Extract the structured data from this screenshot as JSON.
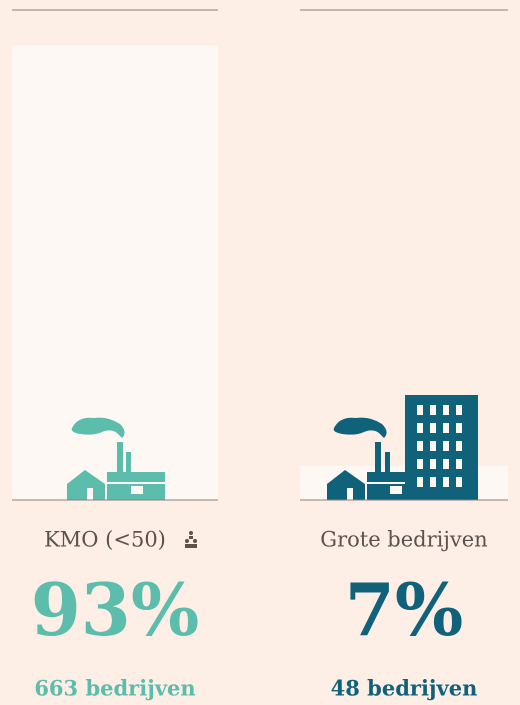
{
  "chart_data": {
    "type": "bar",
    "categories": [
      "KMO (<50)",
      "Grote bedrijven"
    ],
    "values": [
      93,
      7
    ],
    "value_labels": [
      "93%",
      "7%"
    ],
    "counts": [
      "663 bedrijven",
      "48 bedrijven"
    ],
    "colors": [
      "#5cbdac",
      "#0f627a"
    ],
    "bar_color": "#fdf8f3",
    "ylim": [
      0,
      100
    ]
  }
}
